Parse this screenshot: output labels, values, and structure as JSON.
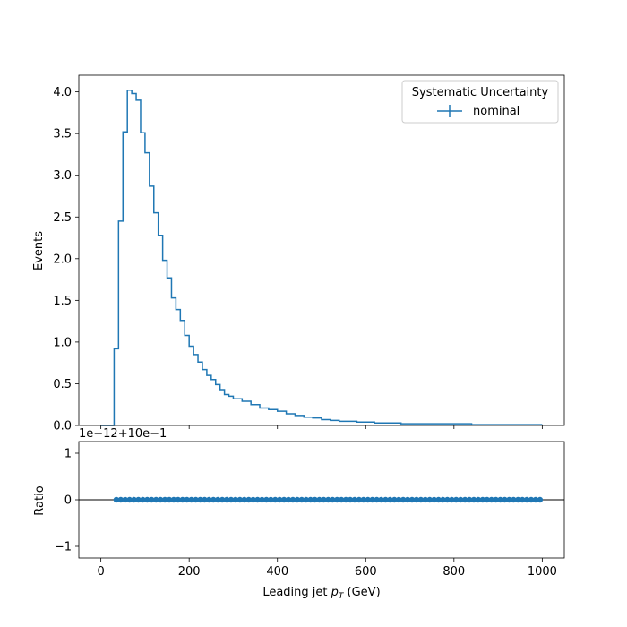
{
  "chart_data": [
    {
      "type": "line",
      "style": "step-histogram",
      "ylabel": "Events",
      "xlim": [
        -50,
        1050
      ],
      "ylim": [
        0,
        4.2
      ],
      "yticks": [
        0.0,
        0.5,
        1.0,
        1.5,
        2.0,
        2.5,
        3.0,
        3.5,
        4.0
      ],
      "ytick_labels": [
        "0.0",
        "0.5",
        "1.0",
        "1.5",
        "2.0",
        "2.5",
        "3.0",
        "3.5",
        "4.0"
      ],
      "xticks": [
        0,
        200,
        400,
        600,
        800,
        1000
      ],
      "legend": {
        "title": "Systematic Uncertainty",
        "placement": "top-right",
        "entries": [
          "nominal"
        ]
      },
      "series": [
        {
          "name": "nominal",
          "color": "#1f77b4",
          "bin_edges": [
            0,
            10,
            20,
            30,
            40,
            50,
            60,
            70,
            80,
            90,
            100,
            110,
            120,
            130,
            140,
            150,
            160,
            170,
            180,
            190,
            200,
            210,
            220,
            230,
            240,
            250,
            260,
            270,
            280,
            290,
            300,
            320,
            340,
            360,
            380,
            400,
            420,
            440,
            460,
            480,
            500,
            520,
            540,
            560,
            580,
            600,
            620,
            640,
            660,
            680,
            700,
            720,
            740,
            760,
            780,
            800,
            820,
            840,
            860,
            880,
            900,
            920,
            940,
            960,
            980,
            1000
          ],
          "values": [
            0.0,
            0.0,
            0.0,
            0.92,
            2.45,
            3.52,
            4.02,
            3.98,
            3.9,
            3.51,
            3.27,
            2.87,
            2.55,
            2.28,
            1.98,
            1.77,
            1.53,
            1.39,
            1.26,
            1.08,
            0.95,
            0.85,
            0.76,
            0.67,
            0.6,
            0.55,
            0.49,
            0.43,
            0.37,
            0.35,
            0.32,
            0.29,
            0.25,
            0.21,
            0.19,
            0.17,
            0.14,
            0.12,
            0.1,
            0.09,
            0.07,
            0.06,
            0.05,
            0.05,
            0.04,
            0.04,
            0.03,
            0.03,
            0.03,
            0.02,
            0.02,
            0.02,
            0.02,
            0.02,
            0.02,
            0.02,
            0.02,
            0.01,
            0.01,
            0.01,
            0.01,
            0.01,
            0.01,
            0.01,
            0.01
          ]
        }
      ]
    },
    {
      "type": "scatter",
      "ylabel": "Ratio",
      "xlabel_text": "Leading jet  ",
      "xlabel_symbol": "p",
      "xlabel_subscript": "T",
      "xlabel_unit": " (GeV)",
      "offset_text": "1e−12+10e−1",
      "xlim": [
        -50,
        1050
      ],
      "ylim": [
        -1.25,
        1.25
      ],
      "yticks": [
        -1,
        0,
        1
      ],
      "ytick_labels": [
        "−1",
        "0",
        "1"
      ],
      "xticks": [
        0,
        200,
        400,
        600,
        800,
        1000
      ],
      "xtick_labels": [
        "0",
        "200",
        "400",
        "600",
        "800",
        "1000"
      ],
      "reference_line": 0,
      "series": [
        {
          "color": "#1f77b4",
          "x": [
            35,
            45,
            55,
            65,
            75,
            85,
            95,
            105,
            115,
            125,
            135,
            145,
            155,
            165,
            175,
            185,
            195,
            205,
            215,
            225,
            235,
            245,
            255,
            265,
            275,
            285,
            295,
            305,
            315,
            325,
            335,
            345,
            355,
            365,
            375,
            385,
            395,
            405,
            415,
            425,
            435,
            445,
            455,
            465,
            475,
            485,
            495,
            505,
            515,
            525,
            535,
            545,
            555,
            565,
            575,
            585,
            595,
            605,
            615,
            625,
            635,
            645,
            655,
            665,
            675,
            685,
            695,
            705,
            715,
            725,
            735,
            745,
            755,
            765,
            775,
            785,
            795,
            805,
            815,
            825,
            835,
            845,
            855,
            865,
            875,
            885,
            895,
            905,
            915,
            925,
            935,
            945,
            955,
            965,
            975,
            985,
            995
          ],
          "y_value": 0
        }
      ]
    }
  ]
}
